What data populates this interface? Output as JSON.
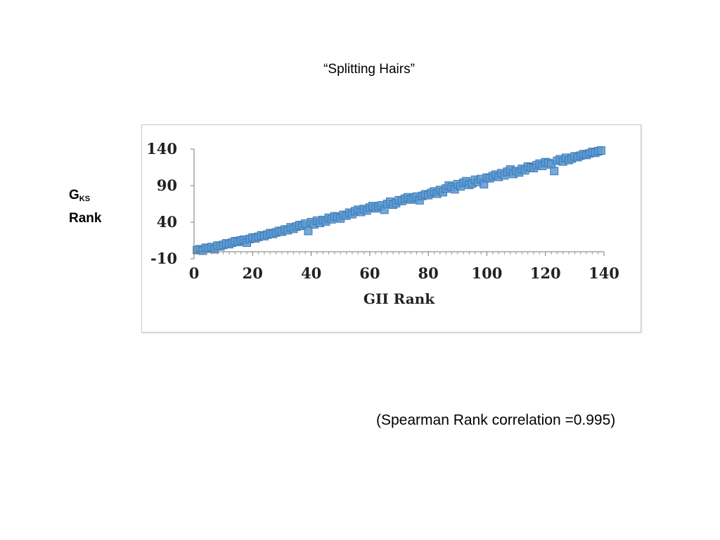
{
  "slide": {
    "title": "“Splitting Hairs”",
    "ylabel_main": "G",
    "ylabel_sub": "KS",
    "ylabel_line2": "Rank",
    "note": "(Spearman Rank correlation =0.995)"
  },
  "chart_data": {
    "type": "scatter",
    "title": "",
    "xlabel": "GII Rank",
    "ylabel": "G KS Rank",
    "xlim": [
      0,
      140
    ],
    "ylim": [
      -10,
      140
    ],
    "xticks": [
      0,
      20,
      40,
      60,
      80,
      100,
      120,
      140
    ],
    "yticks": [
      -10,
      40,
      90,
      140
    ],
    "grid": false,
    "marker": "square",
    "color": "#5b9bd5",
    "series": [
      {
        "x": [
          1,
          2,
          3,
          4,
          5,
          6,
          7,
          8,
          9,
          10,
          11,
          12,
          13,
          14,
          15,
          16,
          17,
          18,
          19,
          20,
          21,
          22,
          23,
          24,
          25,
          26,
          27,
          28,
          29,
          30,
          31,
          32,
          33,
          34,
          35,
          36,
          37,
          38,
          39,
          40,
          41,
          42,
          43,
          44,
          45,
          46,
          47,
          48,
          49,
          50,
          51,
          52,
          53,
          54,
          55,
          56,
          57,
          58,
          59,
          60,
          61,
          62,
          63,
          64,
          65,
          66,
          67,
          68,
          69,
          70,
          71,
          72,
          73,
          74,
          75,
          76,
          77,
          78,
          79,
          80,
          81,
          82,
          83,
          84,
          85,
          86,
          87,
          88,
          89,
          90,
          91,
          92,
          93,
          94,
          95,
          96,
          97,
          98,
          99,
          100,
          101,
          102,
          103,
          104,
          105,
          106,
          107,
          108,
          109,
          110,
          111,
          112,
          113,
          114,
          115,
          116,
          117,
          118,
          119,
          120,
          121,
          122,
          123,
          124,
          125,
          126,
          127,
          128,
          129,
          130,
          131,
          132,
          133,
          134,
          135,
          136,
          137,
          138,
          139
        ],
        "y": [
          2,
          3,
          1,
          5,
          4,
          6,
          3,
          8,
          7,
          9,
          11,
          10,
          12,
          14,
          13,
          15,
          16,
          12,
          17,
          19,
          18,
          20,
          22,
          21,
          23,
          25,
          24,
          26,
          28,
          27,
          30,
          29,
          33,
          31,
          34,
          36,
          35,
          38,
          28,
          40,
          37,
          42,
          39,
          43,
          41,
          46,
          44,
          48,
          47,
          45,
          50,
          49,
          53,
          51,
          55,
          57,
          54,
          58,
          56,
          60,
          62,
          59,
          61,
          63,
          57,
          65,
          68,
          64,
          66,
          70,
          69,
          72,
          74,
          71,
          73,
          75,
          70,
          76,
          78,
          77,
          80,
          82,
          79,
          84,
          81,
          86,
          90,
          88,
          85,
          92,
          89,
          94,
          96,
          91,
          93,
          98,
          95,
          99,
          92,
          101,
          100,
          103,
          105,
          102,
          107,
          104,
          109,
          112,
          106,
          110,
          108,
          113,
          111,
          116,
          115,
          114,
          118,
          120,
          117,
          122,
          121,
          119,
          110,
          124,
          126,
          123,
          128,
          125,
          127,
          130,
          129,
          131,
          133,
          132,
          134,
          136,
          135,
          137,
          138
        ]
      }
    ]
  }
}
